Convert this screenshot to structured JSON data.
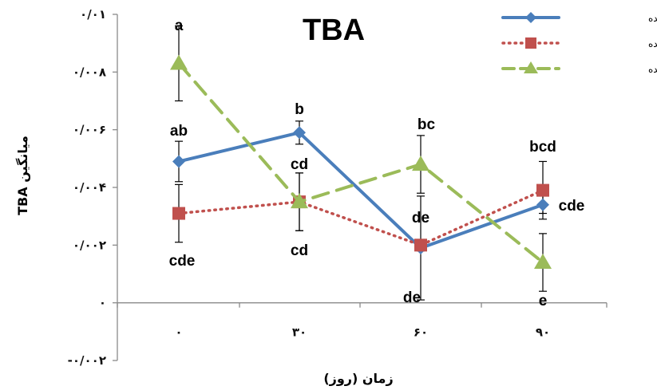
{
  "chart_data": {
    "type": "line",
    "title": "TBA",
    "xlabel": "زمان (روز)",
    "ylabel": "میانگین TBA",
    "categories": [
      "۰",
      "۳۰",
      "۶۰",
      "۹۰"
    ],
    "ylim": [
      -0.002,
      0.01
    ],
    "yticks": [
      {
        "value": 0.01,
        "label": "۰/۰۱"
      },
      {
        "value": 0.008,
        "label": "۰/۰۰۸"
      },
      {
        "value": 0.006,
        "label": "۰/۰۰۶"
      },
      {
        "value": 0.004,
        "label": "۰/۰۰۴"
      },
      {
        "value": 0.002,
        "label": "۰/۰۰۲"
      },
      {
        "value": 0,
        "label": "۰"
      },
      {
        "value": -0.002,
        "label": "-۰/۰۰۲"
      }
    ],
    "legend_position": "top-right",
    "series": [
      {
        "name": "سرخ شده",
        "color": "#4a7ebb",
        "marker": "diamond",
        "dash": "solid",
        "values": [
          0.0049,
          0.0059,
          0.0019,
          0.0034
        ],
        "errors": [
          0.0007,
          0.0004,
          0.0018,
          0.0003
        ],
        "labels": [
          "ab",
          "b",
          "de",
          "cde"
        ]
      },
      {
        "name": "خشک شده",
        "color": "#c0504d",
        "marker": "square",
        "dash": "dotted",
        "values": [
          0.0031,
          0.0035,
          0.002,
          0.0039
        ],
        "errors": [
          0.001,
          0.001,
          0.0002,
          0.001
        ],
        "labels": [
          "cde",
          "cd",
          "de",
          "bcd"
        ]
      },
      {
        "name": "خشک و سرخ شده",
        "color": "#9bbb59",
        "marker": "triangle",
        "dash": "dashed",
        "values": [
          0.0083,
          0.0035,
          0.0048,
          0.0014
        ],
        "errors": [
          0.0013,
          0.001,
          0.001,
          0.001
        ],
        "labels": [
          "a",
          "cd",
          "bc",
          "e"
        ]
      }
    ]
  }
}
